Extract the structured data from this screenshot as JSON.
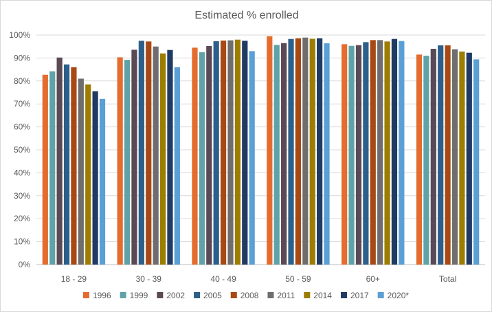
{
  "chart_data": {
    "type": "bar",
    "title": "Estimated % enrolled",
    "xlabel": "",
    "ylabel": "",
    "ylim": [
      0,
      100
    ],
    "y_ticks": [
      "0%",
      "10%",
      "20%",
      "30%",
      "40%",
      "50%",
      "60%",
      "70%",
      "80%",
      "90%",
      "100%"
    ],
    "grid": true,
    "legend_position": "bottom",
    "categories": [
      "18 - 29",
      "30 - 39",
      "40 - 49",
      "50 - 59",
      "60+",
      "Total"
    ],
    "series": [
      {
        "name": "1996",
        "color": "#E46C2E",
        "values": [
          82.7,
          90.3,
          94.5,
          99.5,
          96.0,
          91.5
        ]
      },
      {
        "name": "1999",
        "color": "#5FA3A8",
        "values": [
          84.2,
          89.2,
          92.5,
          95.7,
          95.3,
          91.0
        ]
      },
      {
        "name": "2002",
        "color": "#5A4A55",
        "values": [
          90.2,
          93.6,
          95.2,
          96.5,
          95.6,
          94.0
        ]
      },
      {
        "name": "2005",
        "color": "#2C5F8A",
        "values": [
          87.2,
          97.5,
          97.3,
          98.3,
          96.9,
          95.5
        ]
      },
      {
        "name": "2008",
        "color": "#A84913",
        "values": [
          86.0,
          97.2,
          97.6,
          98.6,
          97.8,
          95.5
        ]
      },
      {
        "name": "2011",
        "color": "#6E6E6E",
        "values": [
          81.0,
          95.0,
          97.7,
          98.9,
          97.8,
          93.8
        ]
      },
      {
        "name": "2014",
        "color": "#9C7D00",
        "values": [
          78.5,
          92.0,
          98.0,
          98.4,
          97.2,
          92.8
        ]
      },
      {
        "name": "2017",
        "color": "#1F3A63",
        "values": [
          75.5,
          93.5,
          97.5,
          98.6,
          98.3,
          92.3
        ]
      },
      {
        "name": "2020*",
        "color": "#5A9FD6",
        "values": [
          72.2,
          86.0,
          93.0,
          96.4,
          97.4,
          89.4
        ]
      }
    ]
  }
}
